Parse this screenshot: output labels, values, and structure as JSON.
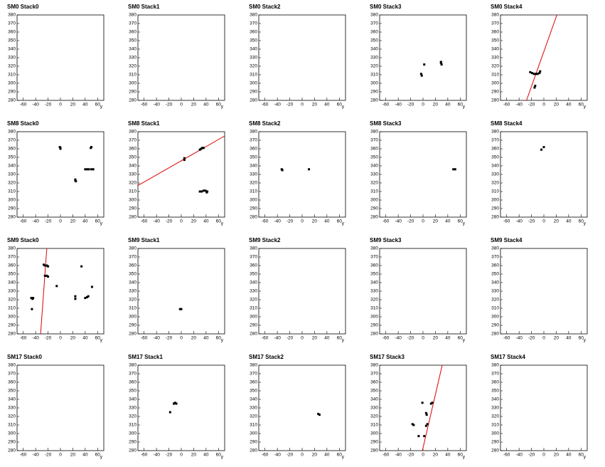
{
  "chart_data": [
    {
      "type": "scatter",
      "title": "SM0 Stack0",
      "xlabel": "y",
      "xlim": [
        -70,
        70
      ],
      "ylim": [
        280,
        380
      ],
      "xticks": [
        -60,
        -40,
        -20,
        0,
        20,
        40,
        60
      ],
      "yticks": [
        280,
        290,
        300,
        310,
        320,
        330,
        340,
        350,
        360,
        370,
        380
      ],
      "series": [
        {
          "color": "#000000",
          "x": [],
          "values": []
        }
      ]
    },
    {
      "type": "scatter",
      "title": "SM0 Stack1",
      "xlabel": "y",
      "xlim": [
        -70,
        70
      ],
      "ylim": [
        280,
        380
      ],
      "xticks": [
        -60,
        -40,
        -20,
        0,
        20,
        40,
        60
      ],
      "yticks": [
        280,
        290,
        300,
        310,
        320,
        330,
        340,
        350,
        360,
        370,
        380
      ],
      "series": [
        {
          "color": "#000000",
          "x": [],
          "values": []
        }
      ]
    },
    {
      "type": "scatter",
      "title": "SM0 Stack2",
      "xlabel": "y",
      "xlim": [
        -70,
        70
      ],
      "ylim": [
        280,
        380
      ],
      "xticks": [
        -60,
        -40,
        -20,
        0,
        20,
        40,
        60
      ],
      "yticks": [
        280,
        290,
        300,
        310,
        320,
        330,
        340,
        350,
        360,
        370,
        380
      ],
      "series": [
        {
          "color": "#000000",
          "x": [],
          "values": []
        }
      ]
    },
    {
      "type": "scatter",
      "title": "SM0 Stack3",
      "xlabel": "y",
      "xlim": [
        -70,
        70
      ],
      "ylim": [
        280,
        380
      ],
      "xticks": [
        -60,
        -40,
        -20,
        0,
        20,
        40,
        60
      ],
      "yticks": [
        280,
        290,
        300,
        310,
        320,
        330,
        340,
        350,
        360,
        370,
        380
      ],
      "series": [
        {
          "color": "#000000",
          "x": [
            -3,
            -2,
            2,
            29,
            30,
            29
          ],
          "values": [
            311,
            309,
            322,
            324,
            322,
            325
          ]
        }
      ]
    },
    {
      "type": "scatter",
      "title": "SM0 Stack4",
      "xlabel": "y",
      "xlim": [
        -70,
        70
      ],
      "ylim": [
        280,
        380
      ],
      "xticks": [
        -60,
        -40,
        -20,
        0,
        20,
        40,
        60
      ],
      "yticks": [
        280,
        290,
        300,
        310,
        320,
        330,
        340,
        350,
        360,
        370,
        380
      ],
      "series": [
        {
          "color": "#000000",
          "x": [
            -22,
            -19,
            -16,
            -13,
            -10,
            -7,
            -6,
            -14,
            -15
          ],
          "values": [
            313,
            312,
            311,
            311,
            311,
            312,
            314,
            297,
            295
          ]
        }
      ],
      "fit": {
        "color": "#dd0000",
        "x": [
          -28,
          21
        ],
        "values": [
          280,
          380
        ]
      }
    },
    {
      "type": "scatter",
      "title": "SM8 Stack0",
      "xlabel": "y",
      "xlim": [
        -70,
        70
      ],
      "ylim": [
        280,
        380
      ],
      "xticks": [
        -60,
        -40,
        -20,
        0,
        20,
        40,
        60
      ],
      "yticks": [
        280,
        290,
        300,
        310,
        320,
        330,
        340,
        350,
        360,
        370,
        380
      ],
      "series": [
        {
          "color": "#000000",
          "x": [
            0,
            0,
            -1,
            24,
            25,
            24,
            40,
            43,
            46,
            50,
            53,
            49,
            50
          ],
          "values": [
            361,
            360,
            362,
            324,
            322,
            323,
            336,
            336,
            336,
            336,
            336,
            361,
            362
          ]
        }
      ]
    },
    {
      "type": "scatter",
      "title": "SM8 Stack1",
      "xlabel": "y",
      "xlim": [
        -70,
        70
      ],
      "ylim": [
        280,
        380
      ],
      "xticks": [
        -60,
        -40,
        -20,
        0,
        20,
        40,
        60
      ],
      "yticks": [
        280,
        290,
        300,
        310,
        320,
        330,
        340,
        350,
        360,
        370,
        380
      ],
      "series": [
        {
          "color": "#000000",
          "x": [
            5,
            5,
            30,
            32,
            34,
            36,
            30,
            33,
            36,
            39,
            42,
            41
          ],
          "values": [
            347,
            349,
            359,
            360,
            361,
            361,
            310,
            310,
            311,
            311,
            310,
            309
          ]
        }
      ],
      "fit": {
        "color": "#dd0000",
        "x": [
          -70,
          70
        ],
        "values": [
          317,
          375
        ]
      }
    },
    {
      "type": "scatter",
      "title": "SM8 Stack2",
      "xlabel": "y",
      "xlim": [
        -70,
        70
      ],
      "ylim": [
        280,
        380
      ],
      "xticks": [
        -60,
        -40,
        -20,
        0,
        20,
        40,
        60
      ],
      "yticks": [
        280,
        290,
        300,
        310,
        320,
        330,
        340,
        350,
        360,
        370,
        380
      ],
      "series": [
        {
          "color": "#000000",
          "x": [
            -33,
            -32,
            11
          ],
          "values": [
            336,
            335,
            336
          ]
        }
      ]
    },
    {
      "type": "scatter",
      "title": "SM8 Stack3",
      "xlabel": "y",
      "xlim": [
        -70,
        70
      ],
      "ylim": [
        280,
        380
      ],
      "xticks": [
        -60,
        -40,
        -20,
        0,
        20,
        40,
        60
      ],
      "yticks": [
        280,
        290,
        300,
        310,
        320,
        330,
        340,
        350,
        360,
        370,
        380
      ],
      "series": [
        {
          "color": "#000000",
          "x": [
            49,
            52
          ],
          "values": [
            336,
            336
          ]
        }
      ]
    },
    {
      "type": "scatter",
      "title": "SM8 Stack4",
      "xlabel": "y",
      "xlim": [
        -70,
        70
      ],
      "ylim": [
        280,
        380
      ],
      "xticks": [
        -60,
        -40,
        -20,
        0,
        20,
        40,
        60
      ],
      "yticks": [
        280,
        290,
        300,
        310,
        320,
        330,
        340,
        350,
        360,
        370,
        380
      ],
      "series": [
        {
          "color": "#000000",
          "x": [
            -4,
            0
          ],
          "values": [
            359,
            362
          ]
        }
      ]
    },
    {
      "type": "scatter",
      "title": "SM9 Stack0",
      "xlabel": "y",
      "xlim": [
        -70,
        70
      ],
      "ylim": [
        280,
        380
      ],
      "xticks": [
        -60,
        -40,
        -20,
        0,
        20,
        40,
        60
      ],
      "yticks": [
        280,
        290,
        300,
        310,
        320,
        330,
        340,
        350,
        360,
        370,
        380
      ],
      "series": [
        {
          "color": "#000000",
          "x": [
            -47,
            -45,
            -44,
            -46,
            -27,
            -25,
            -22,
            -20,
            -25,
            -22,
            -20,
            -6,
            24,
            24,
            34,
            40,
            43,
            45,
            51
          ],
          "values": [
            322,
            321,
            322,
            309,
            361,
            360,
            360,
            359,
            348,
            348,
            347,
            336,
            321,
            324,
            359,
            322,
            323,
            324,
            335
          ]
        }
      ],
      "fit": {
        "color": "#dd0000",
        "x": [
          -32,
          -22
        ],
        "values": [
          280,
          380
        ]
      }
    },
    {
      "type": "scatter",
      "title": "SM9 Stack1",
      "xlabel": "y",
      "xlim": [
        -70,
        70
      ],
      "ylim": [
        280,
        380
      ],
      "xticks": [
        -60,
        -40,
        -20,
        0,
        20,
        40,
        60
      ],
      "yticks": [
        280,
        290,
        300,
        310,
        320,
        330,
        340,
        350,
        360,
        370,
        380
      ],
      "series": [
        {
          "color": "#000000",
          "x": [
            -2,
            0
          ],
          "values": [
            309,
            309
          ]
        }
      ]
    },
    {
      "type": "scatter",
      "title": "SM9 Stack2",
      "xlabel": "y",
      "xlim": [
        -70,
        70
      ],
      "ylim": [
        280,
        380
      ],
      "xticks": [
        -60,
        -40,
        -20,
        0,
        20,
        40,
        60
      ],
      "yticks": [
        280,
        290,
        300,
        310,
        320,
        330,
        340,
        350,
        360,
        370,
        380
      ],
      "series": [
        {
          "color": "#000000",
          "x": [],
          "values": []
        }
      ]
    },
    {
      "type": "scatter",
      "title": "SM9 Stack3",
      "xlabel": "y",
      "xlim": [
        -70,
        70
      ],
      "ylim": [
        280,
        380
      ],
      "xticks": [
        -60,
        -40,
        -20,
        0,
        20,
        40,
        60
      ],
      "yticks": [
        280,
        290,
        300,
        310,
        320,
        330,
        340,
        350,
        360,
        370,
        380
      ],
      "series": [
        {
          "color": "#000000",
          "x": [],
          "values": []
        }
      ]
    },
    {
      "type": "scatter",
      "title": "SM9 Stack4",
      "xlabel": "y",
      "xlim": [
        -70,
        70
      ],
      "ylim": [
        280,
        380
      ],
      "xticks": [
        -60,
        -40,
        -20,
        0,
        20,
        40,
        60
      ],
      "yticks": [
        280,
        290,
        300,
        310,
        320,
        330,
        340,
        350,
        360,
        370,
        380
      ],
      "series": [
        {
          "color": "#000000",
          "x": [],
          "values": []
        }
      ]
    },
    {
      "type": "scatter",
      "title": "SM17 Stack0",
      "xlabel": "y",
      "xlim": [
        -70,
        70
      ],
      "ylim": [
        280,
        380
      ],
      "xticks": [
        -60,
        -40,
        -20,
        0,
        20,
        40,
        60
      ],
      "yticks": [
        280,
        290,
        300,
        310,
        320,
        330,
        340,
        350,
        360,
        370,
        380
      ],
      "series": [
        {
          "color": "#000000",
          "x": [],
          "values": []
        }
      ]
    },
    {
      "type": "scatter",
      "title": "SM17 Stack1",
      "xlabel": "y",
      "xlim": [
        -70,
        70
      ],
      "ylim": [
        280,
        380
      ],
      "xticks": [
        -60,
        -40,
        -20,
        0,
        20,
        40,
        60
      ],
      "yticks": [
        280,
        290,
        300,
        310,
        320,
        330,
        340,
        350,
        360,
        370,
        380
      ],
      "series": [
        {
          "color": "#000000",
          "x": [
            -18,
            -10,
            -8,
            -12
          ],
          "values": [
            325,
            336,
            335,
            335
          ]
        }
      ]
    },
    {
      "type": "scatter",
      "title": "SM17 Stack2",
      "xlabel": "y",
      "xlim": [
        -70,
        70
      ],
      "ylim": [
        280,
        380
      ],
      "xticks": [
        -60,
        -40,
        -20,
        0,
        20,
        40,
        60
      ],
      "yticks": [
        280,
        290,
        300,
        310,
        320,
        330,
        340,
        350,
        360,
        370,
        380
      ],
      "series": [
        {
          "color": "#000000",
          "x": [
            26,
            28
          ],
          "values": [
            323,
            322
          ]
        }
      ]
    },
    {
      "type": "scatter",
      "title": "SM17 Stack3",
      "xlabel": "y",
      "xlim": [
        -70,
        70
      ],
      "ylim": [
        280,
        380
      ],
      "xticks": [
        -60,
        -40,
        -20,
        0,
        20,
        40,
        60
      ],
      "yticks": [
        280,
        290,
        300,
        310,
        320,
        330,
        340,
        350,
        360,
        370,
        380
      ],
      "series": [
        {
          "color": "#000000",
          "x": [
            -17,
            -15,
            -7,
            -1,
            2,
            5,
            6,
            5,
            7,
            13,
            15
          ],
          "values": [
            311,
            310,
            297,
            336,
            297,
            324,
            322,
            309,
            311,
            335,
            336
          ]
        }
      ],
      "fit": {
        "color": "#dd0000",
        "x": [
          -1,
          31
        ],
        "values": [
          280,
          380
        ]
      }
    },
    {
      "type": "scatter",
      "title": "SM17 Stack4",
      "xlabel": "y",
      "xlim": [
        -70,
        70
      ],
      "ylim": [
        280,
        380
      ],
      "xticks": [
        -60,
        -40,
        -20,
        0,
        20,
        40,
        60
      ],
      "yticks": [
        280,
        290,
        300,
        310,
        320,
        330,
        340,
        350,
        360,
        370,
        380
      ],
      "series": [
        {
          "color": "#000000",
          "x": [],
          "values": []
        }
      ]
    }
  ]
}
